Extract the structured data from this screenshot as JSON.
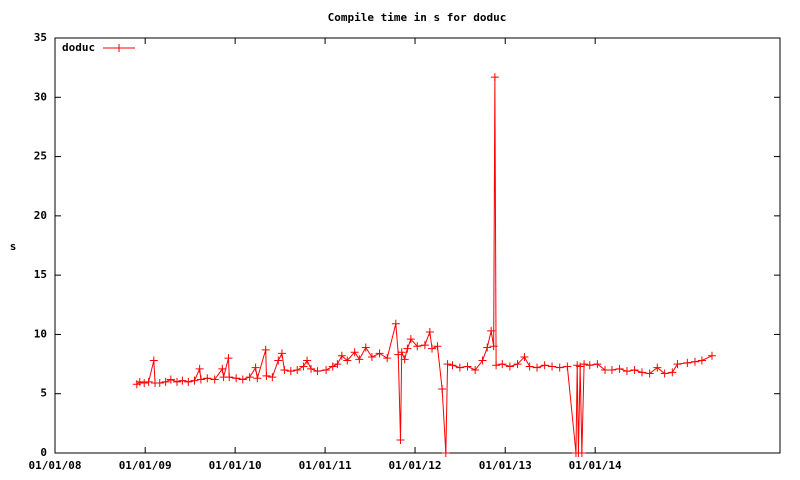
{
  "chart_data": {
    "type": "line",
    "title": "Compile time in s for doduc",
    "ylabel": "s",
    "x": [
      "2008-11-28",
      "2008-12-10",
      "2008-12-28",
      "2009-01-15",
      "2009-02-05",
      "2009-02-10",
      "2009-03-01",
      "2009-03-25",
      "2009-04-15",
      "2009-05-10",
      "2009-06-01",
      "2009-06-25",
      "2009-07-20",
      "2009-08-10",
      "2009-08-15",
      "2009-09-10",
      "2009-10-10",
      "2009-11-10",
      "2009-11-15",
      "2009-12-05",
      "2009-12-08",
      "2010-01-05",
      "2010-02-01",
      "2010-03-01",
      "2010-03-25",
      "2010-04-01",
      "2010-05-05",
      "2010-05-08",
      "2010-06-01",
      "2010-06-25",
      "2010-07-10",
      "2010-07-20",
      "2010-08-15",
      "2010-09-10",
      "2010-10-05",
      "2010-10-20",
      "2010-11-05",
      "2010-12-01",
      "2011-01-05",
      "2011-02-01",
      "2011-02-20",
      "2011-03-10",
      "2011-04-01",
      "2011-05-01",
      "2011-05-20",
      "2011-06-15",
      "2011-07-10",
      "2011-08-10",
      "2011-09-10",
      "2011-10-15",
      "2011-10-25",
      "2011-11-03",
      "2011-11-08",
      "2011-11-20",
      "2011-12-01",
      "2011-12-15",
      "2012-01-10",
      "2012-02-10",
      "2012-03-01",
      "2012-03-10",
      "2012-04-01",
      "2012-04-20",
      "2012-05-05",
      "2012-05-12",
      "2012-06-01",
      "2012-07-01",
      "2012-08-01",
      "2012-09-01",
      "2012-10-01",
      "2012-10-20",
      "2012-11-05",
      "2012-11-15",
      "2012-11-20",
      "2012-11-25",
      "2012-12-20",
      "2013-01-20",
      "2013-02-20",
      "2013-03-20",
      "2013-04-10",
      "2013-05-10",
      "2013-06-10",
      "2013-07-10",
      "2013-08-10",
      "2013-09-10",
      "2013-10-15",
      "2013-10-20",
      "2013-10-25",
      "2013-11-01",
      "2013-11-08",
      "2013-11-17",
      "2013-12-10",
      "2014-01-10",
      "2014-02-10",
      "2014-03-10",
      "2014-04-10",
      "2014-05-10",
      "2014-06-10",
      "2014-07-10",
      "2014-08-10",
      "2014-09-10",
      "2014-10-10",
      "2014-11-10",
      "2014-12-01",
      "2015-01-10",
      "2015-02-10",
      "2015-03-10",
      "2015-04-20"
    ],
    "series": [
      {
        "name": "doduc",
        "color": "#ff0000",
        "values": [
          5.8,
          6.0,
          5.9,
          6.0,
          7.8,
          5.9,
          5.9,
          6.0,
          6.2,
          6.0,
          6.1,
          6.0,
          6.1,
          7.1,
          6.2,
          6.3,
          6.2,
          7.1,
          6.4,
          8.0,
          6.4,
          6.3,
          6.2,
          6.4,
          7.2,
          6.3,
          8.7,
          6.5,
          6.4,
          7.8,
          8.4,
          7.0,
          6.9,
          7.0,
          7.3,
          7.8,
          7.1,
          6.9,
          7.0,
          7.3,
          7.5,
          8.2,
          7.8,
          8.5,
          7.9,
          8.9,
          8.1,
          8.4,
          8.0,
          10.9,
          8.3,
          1.1,
          8.5,
          7.9,
          8.8,
          9.6,
          9.0,
          9.1,
          10.2,
          8.8,
          9.0,
          5.4,
          0,
          7.5,
          7.4,
          7.2,
          7.3,
          7.0,
          7.8,
          8.9,
          10.3,
          9.0,
          31.7,
          7.4,
          7.5,
          7.3,
          7.5,
          8.1,
          7.3,
          7.2,
          7.4,
          7.3,
          7.2,
          7.3,
          0,
          7.4,
          0,
          7.3,
          0,
          7.5,
          7.4,
          7.5,
          7.0,
          7.0,
          7.1,
          6.9,
          7.0,
          6.8,
          6.7,
          7.2,
          6.7,
          6.8,
          7.5,
          7.6,
          7.7,
          7.8,
          8.2
        ]
      }
    ],
    "xlim": [
      "2008-01-01",
      "2016-01-21"
    ],
    "xticks": [
      {
        "value": "2008-01-01",
        "label": "01/01/08"
      },
      {
        "value": "2009-01-01",
        "label": "01/01/09"
      },
      {
        "value": "2010-01-01",
        "label": "01/01/10"
      },
      {
        "value": "2011-01-01",
        "label": "01/01/11"
      },
      {
        "value": "2012-01-01",
        "label": "01/01/12"
      },
      {
        "value": "2013-01-01",
        "label": "01/01/13"
      },
      {
        "value": "2014-01-01",
        "label": "01/01/14"
      }
    ],
    "ylim": [
      0,
      35
    ],
    "yticks": [
      0,
      5,
      10,
      15,
      20,
      25,
      30,
      35
    ],
    "legend": "top-left"
  }
}
